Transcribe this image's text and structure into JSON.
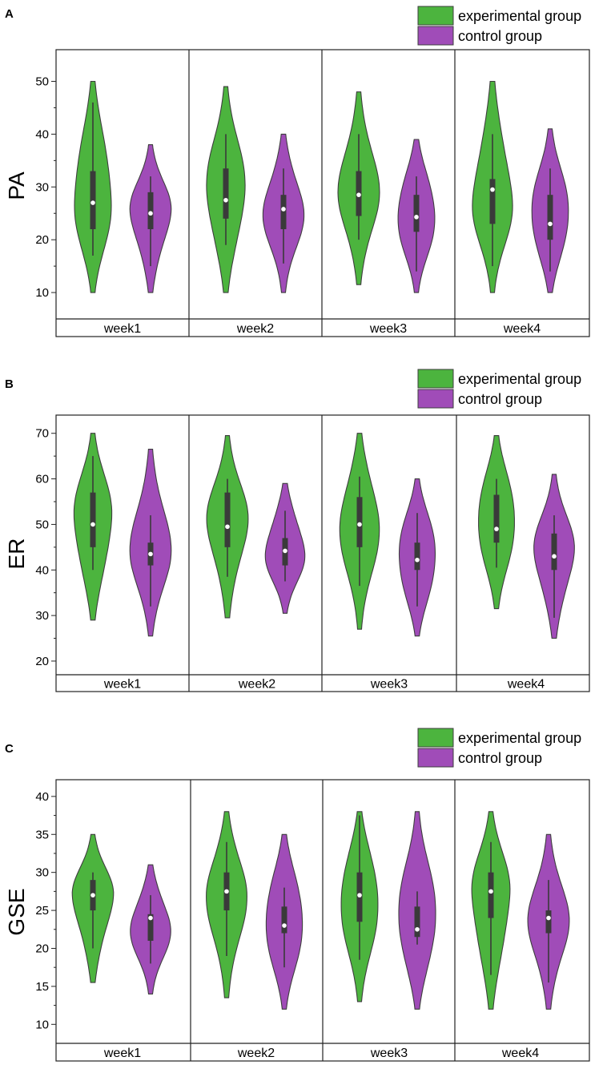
{
  "colors": {
    "experimental": "#4cb43e",
    "control": "#a04cb8",
    "outline": "#3e3e3e",
    "box": "#3a3a3a",
    "median": "#ffffff"
  },
  "chart_data": [
    {
      "type": "violin",
      "panel_label": "A",
      "ylabel": "PA",
      "yticks": [
        10,
        20,
        30,
        40,
        50
      ],
      "ylim": [
        5,
        56
      ],
      "categories": [
        "week1",
        "week2",
        "week3",
        "week4"
      ],
      "legend": {
        "position": "top-right",
        "entries": [
          "experimental group",
          "control group"
        ]
      },
      "series": [
        {
          "name": "experimental group",
          "stats": [
            {
              "min": 10,
              "max": 50,
              "q1": 22,
              "median": 27,
              "q3": 33,
              "whisker_low": 17,
              "whisker_high": 46
            },
            {
              "min": 10,
              "max": 49,
              "q1": 24,
              "median": 27.5,
              "q3": 33.5,
              "whisker_low": 19,
              "whisker_high": 40
            },
            {
              "min": 11.5,
              "max": 48,
              "q1": 24.5,
              "median": 28.5,
              "q3": 33,
              "whisker_low": 20,
              "whisker_high": 40
            },
            {
              "min": 10,
              "max": 50,
              "q1": 23,
              "median": 29.5,
              "q3": 31.5,
              "whisker_low": 15,
              "whisker_high": 40
            }
          ]
        },
        {
          "name": "control group",
          "stats": [
            {
              "min": 10,
              "max": 38,
              "q1": 22,
              "median": 25,
              "q3": 29,
              "whisker_low": 15,
              "whisker_high": 32
            },
            {
              "min": 10,
              "max": 40,
              "q1": 22,
              "median": 25.8,
              "q3": 28.5,
              "whisker_low": 15.5,
              "whisker_high": 33.5
            },
            {
              "min": 10,
              "max": 39,
              "q1": 21.5,
              "median": 24.3,
              "q3": 28.5,
              "whisker_low": 14,
              "whisker_high": 32
            },
            {
              "min": 10,
              "max": 41,
              "q1": 20,
              "median": 23,
              "q3": 28.5,
              "whisker_low": 14,
              "whisker_high": 33.5
            }
          ]
        }
      ]
    },
    {
      "type": "violin",
      "panel_label": "B",
      "ylabel": "ER",
      "yticks": [
        20,
        30,
        40,
        50,
        60,
        70
      ],
      "ylim": [
        17,
        74
      ],
      "categories": [
        "week1",
        "week2",
        "week3",
        "week4"
      ],
      "legend": {
        "position": "top-right",
        "entries": [
          "experimental group",
          "control group"
        ]
      },
      "series": [
        {
          "name": "experimental group",
          "stats": [
            {
              "min": 29,
              "max": 70,
              "q1": 45,
              "median": 50,
              "q3": 57,
              "whisker_low": 40,
              "whisker_high": 65
            },
            {
              "min": 29.5,
              "max": 69.5,
              "q1": 45,
              "median": 49.5,
              "q3": 57,
              "whisker_low": 38.5,
              "whisker_high": 60
            },
            {
              "min": 27,
              "max": 70,
              "q1": 45,
              "median": 50,
              "q3": 56,
              "whisker_low": 36.5,
              "whisker_high": 60.5
            },
            {
              "min": 31.5,
              "max": 69.5,
              "q1": 46,
              "median": 49,
              "q3": 56.5,
              "whisker_low": 40.5,
              "whisker_high": 60
            }
          ]
        },
        {
          "name": "control group",
          "stats": [
            {
              "min": 25.5,
              "max": 66.5,
              "q1": 41,
              "median": 43.5,
              "q3": 46,
              "whisker_low": 32,
              "whisker_high": 52
            },
            {
              "min": 30.5,
              "max": 59,
              "q1": 41,
              "median": 44.2,
              "q3": 47,
              "whisker_low": 37.5,
              "whisker_high": 53
            },
            {
              "min": 25.5,
              "max": 60,
              "q1": 40,
              "median": 42.2,
              "q3": 46,
              "whisker_low": 32,
              "whisker_high": 52.5
            },
            {
              "min": 25,
              "max": 61,
              "q1": 40,
              "median": 43,
              "q3": 48,
              "whisker_low": 29.5,
              "whisker_high": 52
            }
          ]
        }
      ]
    },
    {
      "type": "violin",
      "panel_label": "C",
      "ylabel": "GSE",
      "yticks": [
        10,
        15,
        20,
        25,
        30,
        35,
        40
      ],
      "ylim": [
        7.5,
        42.2
      ],
      "categories": [
        "week1",
        "week2",
        "week3",
        "week4"
      ],
      "legend": {
        "position": "top-right",
        "entries": [
          "experimental group",
          "control group"
        ]
      },
      "series": [
        {
          "name": "experimental group",
          "stats": [
            {
              "min": 15.5,
              "max": 35,
              "q1": 25,
              "median": 27,
              "q3": 29,
              "whisker_low": 20,
              "whisker_high": 30
            },
            {
              "min": 13.5,
              "max": 38,
              "q1": 25,
              "median": 27.5,
              "q3": 30,
              "whisker_low": 19,
              "whisker_high": 34
            },
            {
              "min": 13,
              "max": 38,
              "q1": 23.5,
              "median": 27,
              "q3": 30,
              "whisker_low": 18.5,
              "whisker_high": 37.5
            },
            {
              "min": 12,
              "max": 38,
              "q1": 24,
              "median": 27.5,
              "q3": 30,
              "whisker_low": 16.5,
              "whisker_high": 34
            }
          ]
        },
        {
          "name": "control group",
          "stats": [
            {
              "min": 14,
              "max": 31,
              "q1": 21,
              "median": 24,
              "q3": 24.5,
              "whisker_low": 18,
              "whisker_high": 27
            },
            {
              "min": 12,
              "max": 35,
              "q1": 22,
              "median": 23,
              "q3": 25.5,
              "whisker_low": 17.5,
              "whisker_high": 28
            },
            {
              "min": 12,
              "max": 38,
              "q1": 21.5,
              "median": 22.5,
              "q3": 25.5,
              "whisker_low": 20.5,
              "whisker_high": 27.5
            },
            {
              "min": 12,
              "max": 35,
              "q1": 22,
              "median": 24,
              "q3": 25,
              "whisker_low": 15.5,
              "whisker_high": 29
            }
          ]
        }
      ]
    }
  ]
}
